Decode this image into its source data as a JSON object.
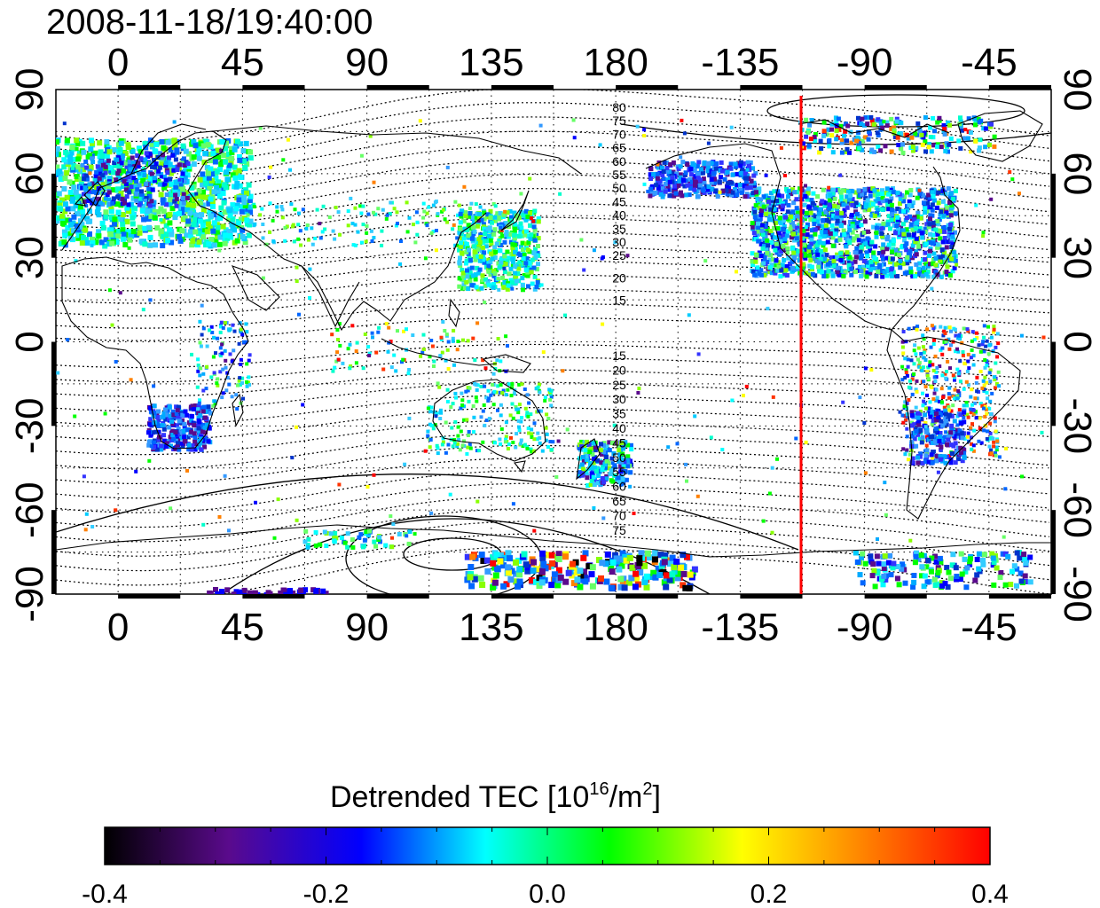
{
  "timestamp": "2008-11-18/19:40:00",
  "map": {
    "lon_ticks": [
      "0",
      "45",
      "90",
      "135",
      "180",
      "-135",
      "-90",
      "-45"
    ],
    "lat_ticks": [
      "90",
      "60",
      "30",
      "0",
      "-30",
      "-60",
      "-90"
    ],
    "mlat_labels_north": [
      "80",
      "75",
      "70",
      "65",
      "60",
      "55",
      "50",
      "45",
      "40",
      "35",
      "30",
      "25",
      "20",
      "15"
    ],
    "mlat_labels_south": [
      "15",
      "20",
      "25",
      "30",
      "35",
      "40",
      "45",
      "50",
      "55",
      "60",
      "65",
      "70",
      "75"
    ],
    "terminator_color": "#ff0000",
    "colors": {
      "frame": "#000000",
      "grid": "#000000",
      "coast": "#000000"
    }
  },
  "colorbar": {
    "title_main": "Detrended TEC  [10",
    "title_sup1": "16",
    "title_mid": "/m",
    "title_sup2": "2",
    "title_end": "]",
    "tick_labels": [
      "-0.4",
      "-0.2",
      "0.0",
      "0.2",
      "0.4"
    ],
    "stops": [
      "#000000",
      "#5a0a8c",
      "#0000ff",
      "#00ffff",
      "#00ff00",
      "#ffff00",
      "#ff8000",
      "#ff0000"
    ]
  }
}
